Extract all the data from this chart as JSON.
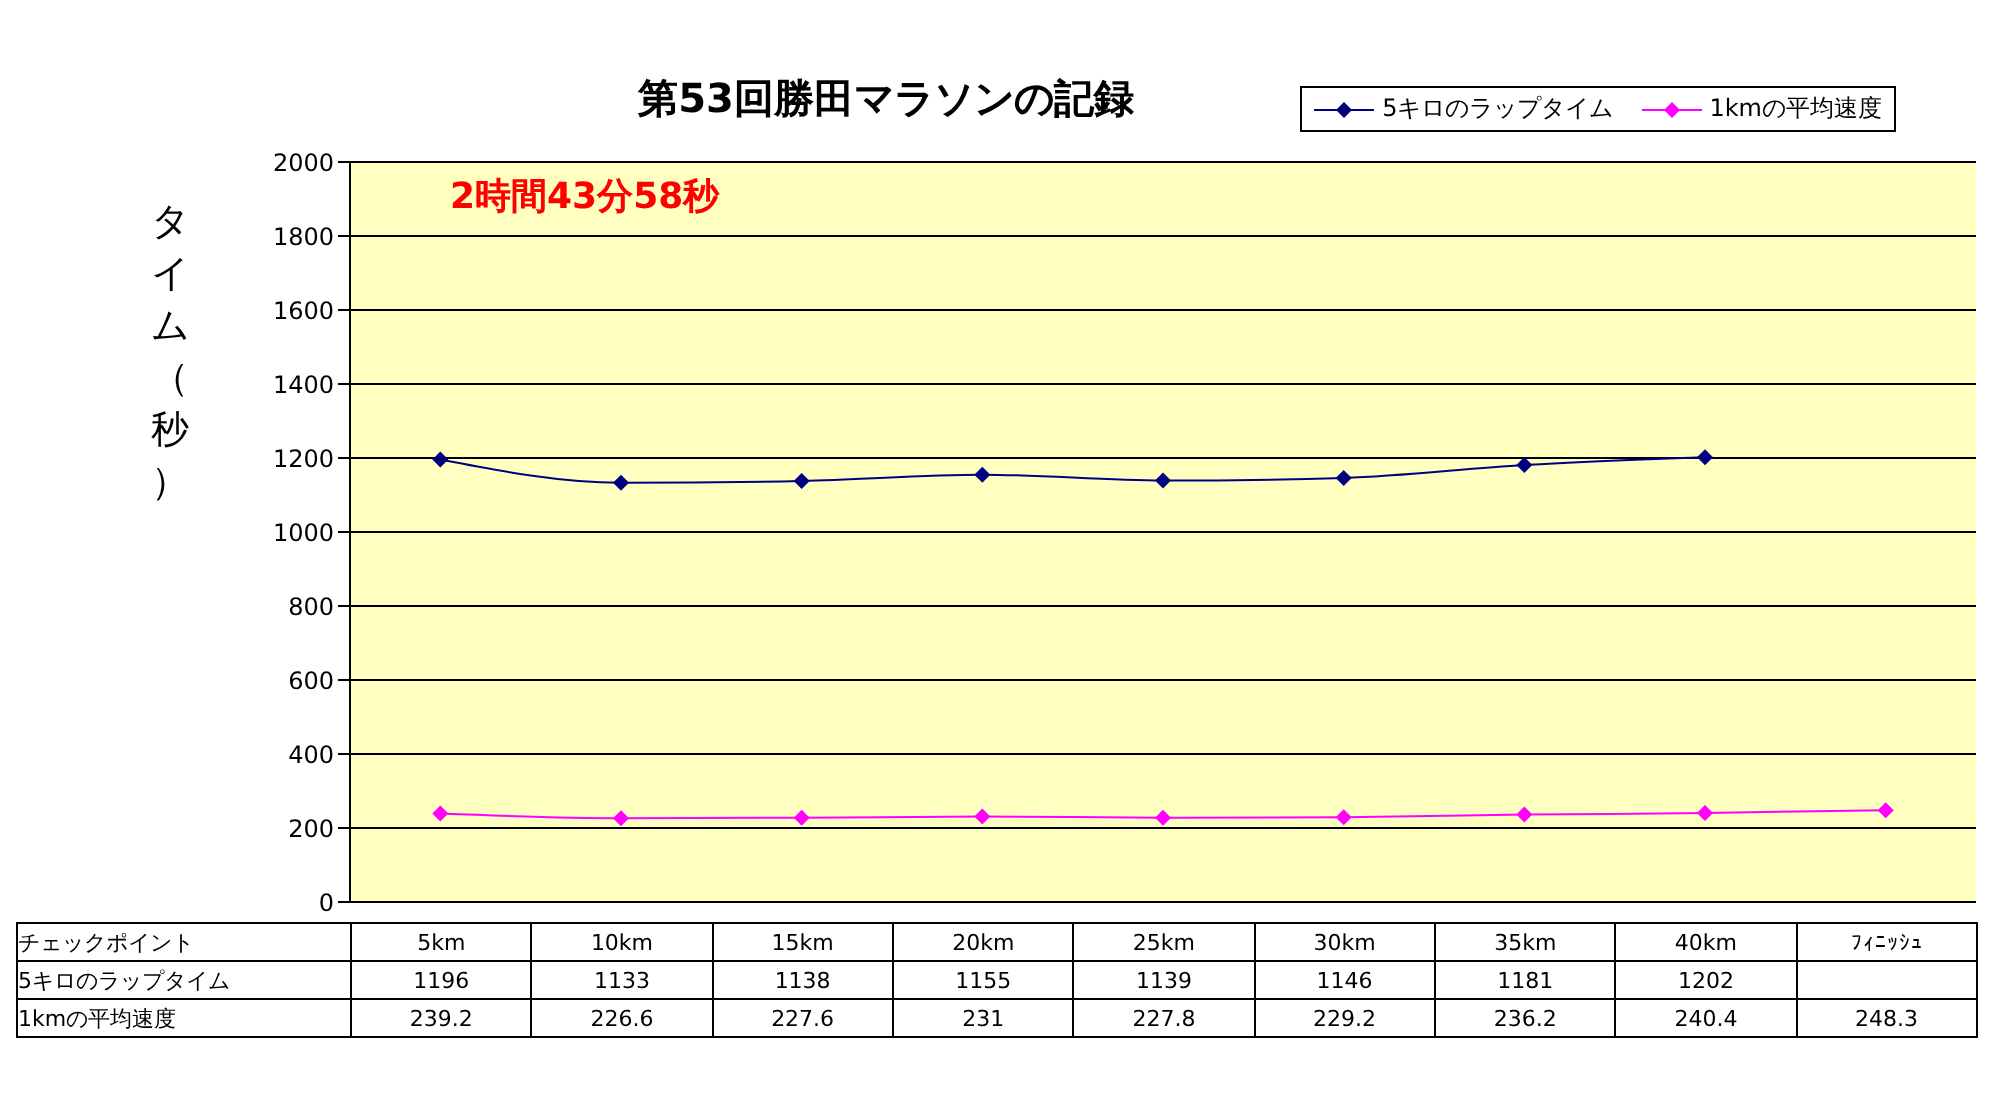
{
  "chart_data": {
    "type": "line",
    "title": "第53回勝田マラソンの記録",
    "ylabel": "タイム（秒）",
    "xlabel": "チェックポイント",
    "categories": [
      "5km",
      "10km",
      "15km",
      "20km",
      "25km",
      "30km",
      "35km",
      "40km",
      "ﾌｨﾆｯｼｭ"
    ],
    "series": [
      {
        "name": "5キロのラップタイム",
        "color": "#000080",
        "values": [
          1196,
          1133,
          1138,
          1155,
          1139,
          1146,
          1181,
          1202,
          null
        ]
      },
      {
        "name": "1kmの平均速度",
        "color": "#ff00ff",
        "values": [
          239.2,
          226.6,
          227.6,
          231,
          227.8,
          229.2,
          236.2,
          240.4,
          248.3
        ]
      }
    ],
    "ylim": [
      0,
      2000
    ],
    "yticks": [
      0,
      200,
      400,
      600,
      800,
      1000,
      1200,
      1400,
      1600,
      1800,
      2000
    ],
    "grid": "y",
    "legend": "top right",
    "marker": "diamond",
    "line_style": "solid",
    "data_labels": true,
    "annotations": [
      "2時間43分58秒"
    ]
  }
}
